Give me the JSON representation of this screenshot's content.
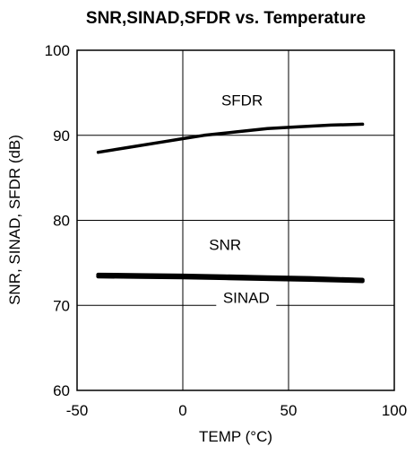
{
  "chart_data": {
    "type": "line",
    "title": "SNR,SINAD,SFDR vs. Temperature",
    "xlabel": "TEMP (°C)",
    "ylabel": "SNR, SINAD, SFDR (dB)",
    "xlim": [
      -50,
      100
    ],
    "ylim": [
      60,
      100
    ],
    "xticks": [
      -50,
      0,
      50,
      100
    ],
    "yticks": [
      60,
      70,
      80,
      90,
      100
    ],
    "grid": true,
    "legend": "none",
    "series": [
      {
        "name": "SFDR",
        "color": "#000000",
        "stroke": "thin",
        "x": [
          -40,
          -25,
          -10,
          0,
          10,
          25,
          40,
          55,
          70,
          85
        ],
        "y": [
          88.0,
          88.6,
          89.2,
          89.6,
          90.0,
          90.4,
          90.8,
          91.0,
          91.2,
          91.3
        ]
      },
      {
        "name": "SNR",
        "color": "#000000",
        "stroke": "thick",
        "x": [
          -40,
          -20,
          0,
          20,
          40,
          60,
          85
        ],
        "y": [
          73.6,
          73.55,
          73.5,
          73.4,
          73.3,
          73.2,
          73.0
        ]
      },
      {
        "name": "SINAD",
        "color": "#000000",
        "stroke": "thick",
        "x": [
          -40,
          -20,
          0,
          20,
          40,
          60,
          85
        ],
        "y": [
          73.4,
          73.35,
          73.3,
          73.2,
          73.1,
          73.0,
          72.85
        ]
      }
    ],
    "annotations": [
      {
        "text": "SFDR",
        "x": 28,
        "y": 93.5
      },
      {
        "text": "SNR",
        "x": 20,
        "y": 76.5
      },
      {
        "text": "SINAD",
        "x": 30,
        "y": 70.3
      }
    ]
  }
}
